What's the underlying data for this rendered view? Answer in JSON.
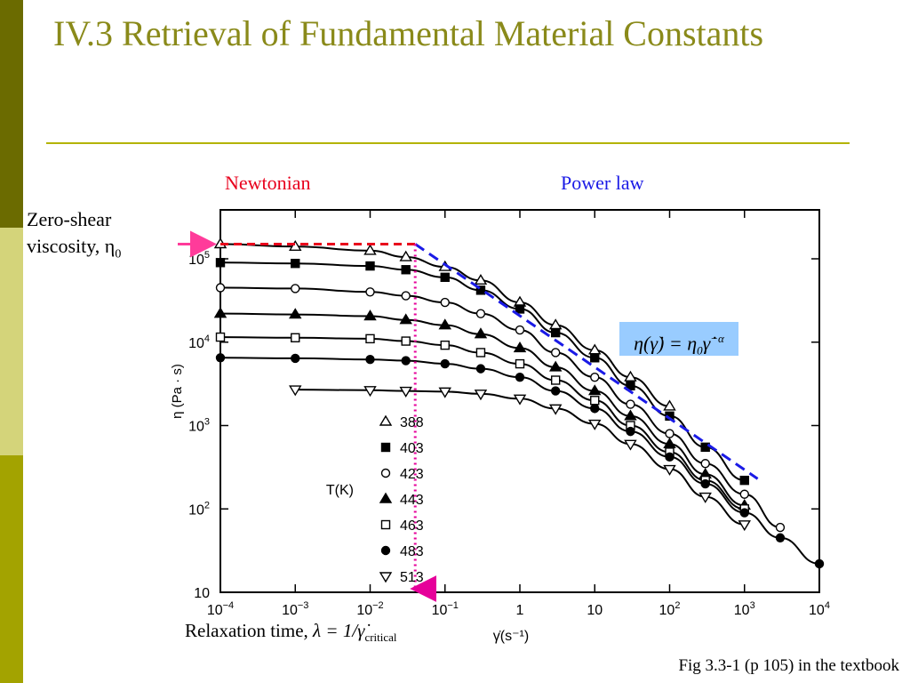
{
  "slide": {
    "title": "IV.3 Retrieval of Fundamental Material Constants",
    "caption": "Fig 3.3-1 (p 105) in the textbook",
    "colors": {
      "title": "#8a8a1a",
      "rule": "#b3b300",
      "sidebar_dark": "#6b6b00",
      "sidebar_light": "#d4d47a"
    }
  },
  "annotations": {
    "newtonian": "Newtonian",
    "power_law": "Power law",
    "zero_shear_line1": "Zero-shear",
    "zero_shear_line2": "viscosity, η",
    "zero_shear_sub": "0",
    "relaxation_text": "Relaxation time,",
    "relaxation_eq_main": "λ = 1/",
    "relaxation_eq_gamma": "γ̇",
    "relaxation_eq_sub": "critical",
    "equation_lhs": "η(γ̇) = η",
    "equation_sub": "0",
    "equation_gamma": "γ̇",
    "equation_exp": "−α",
    "colors": {
      "newtonian": "#e8001c",
      "power_law": "#1a1ae6",
      "arrow": "#ff3b9a",
      "dotted": "#e6009a",
      "equation_bg": "#99ccff"
    }
  },
  "chart_data": {
    "type": "line",
    "x_scale": "log",
    "y_scale": "log",
    "xlim": [
      0.0001,
      10000
    ],
    "ylim": [
      10,
      500000
    ],
    "xlabel": "γ̇(s⁻¹)",
    "ylabel": "η (Pa · s)",
    "x_ticks": [
      {
        "value": 0.0001,
        "base": "10",
        "exp": "−4"
      },
      {
        "value": 0.001,
        "base": "10",
        "exp": "−3"
      },
      {
        "value": 0.01,
        "base": "10",
        "exp": "−2"
      },
      {
        "value": 0.1,
        "base": "10",
        "exp": "−1"
      },
      {
        "value": 1,
        "base": "1",
        "exp": ""
      },
      {
        "value": 10,
        "base": "10",
        "exp": ""
      },
      {
        "value": 100,
        "base": "10",
        "exp": "2"
      },
      {
        "value": 1000,
        "base": "10",
        "exp": "3"
      },
      {
        "value": 10000,
        "base": "10",
        "exp": "4"
      }
    ],
    "y_ticks": [
      {
        "value": 10,
        "base": "10",
        "exp": ""
      },
      {
        "value": 100,
        "base": "10",
        "exp": "2"
      },
      {
        "value": 1000,
        "base": "10",
        "exp": "3"
      },
      {
        "value": 10000,
        "base": "10",
        "exp": "4"
      },
      {
        "value": 100000,
        "base": "10",
        "exp": "5"
      }
    ],
    "legend_title": "T(K)",
    "legend_position": "center-left",
    "grid": false,
    "series": [
      {
        "name": "388",
        "marker": "triangle-up-open",
        "x": [
          0.0001,
          0.001,
          0.01,
          0.03,
          0.1,
          0.3,
          1,
          3,
          10,
          30,
          100
        ],
        "y": [
          150000,
          140000,
          125000,
          105000,
          80000,
          55000,
          30000,
          16000,
          8000,
          3800,
          1700
        ]
      },
      {
        "name": "403",
        "marker": "square-filled",
        "x": [
          0.0001,
          0.001,
          0.01,
          0.03,
          0.1,
          0.3,
          1,
          3,
          10,
          30,
          100,
          300,
          1000
        ],
        "y": [
          90000,
          88000,
          82000,
          74000,
          60000,
          42000,
          25000,
          13000,
          6500,
          3000,
          1300,
          550,
          220
        ]
      },
      {
        "name": "423",
        "marker": "circle-open",
        "x": [
          0.0001,
          0.001,
          0.01,
          0.03,
          0.1,
          0.3,
          1,
          3,
          10,
          30,
          100,
          300,
          1000,
          3000
        ],
        "y": [
          45000,
          44000,
          40000,
          36000,
          30000,
          22000,
          14000,
          7500,
          3800,
          1800,
          800,
          350,
          150,
          60
        ]
      },
      {
        "name": "443",
        "marker": "triangle-up-filled",
        "x": [
          0.0001,
          0.001,
          0.01,
          0.03,
          0.1,
          0.3,
          1,
          3,
          10,
          30,
          100,
          300,
          1000
        ],
        "y": [
          22000,
          21500,
          20500,
          18500,
          16000,
          12500,
          8500,
          5000,
          2600,
          1300,
          600,
          260,
          110
        ]
      },
      {
        "name": "463",
        "marker": "square-open",
        "x": [
          0.0001,
          0.001,
          0.01,
          0.03,
          0.1,
          0.3,
          1,
          3,
          10,
          30,
          100,
          300,
          1000
        ],
        "y": [
          11500,
          11300,
          11000,
          10300,
          9200,
          7500,
          5500,
          3500,
          2000,
          1000,
          480,
          220,
          100
        ]
      },
      {
        "name": "483",
        "marker": "circle-filled",
        "x": [
          0.0001,
          0.001,
          0.01,
          0.03,
          0.1,
          0.3,
          1,
          3,
          10,
          30,
          100,
          300,
          1000,
          3000,
          10000
        ],
        "y": [
          6500,
          6400,
          6200,
          6000,
          5500,
          4800,
          3800,
          2600,
          1600,
          850,
          420,
          200,
          90,
          45,
          22
        ]
      },
      {
        "name": "513",
        "marker": "triangle-down-open",
        "x": [
          0.001,
          0.01,
          0.03,
          0.1,
          0.3,
          1,
          3,
          10,
          30,
          100,
          300,
          1000
        ],
        "y": [
          2700,
          2650,
          2600,
          2550,
          2400,
          2100,
          1600,
          1050,
          600,
          300,
          140,
          65
        ]
      }
    ]
  }
}
